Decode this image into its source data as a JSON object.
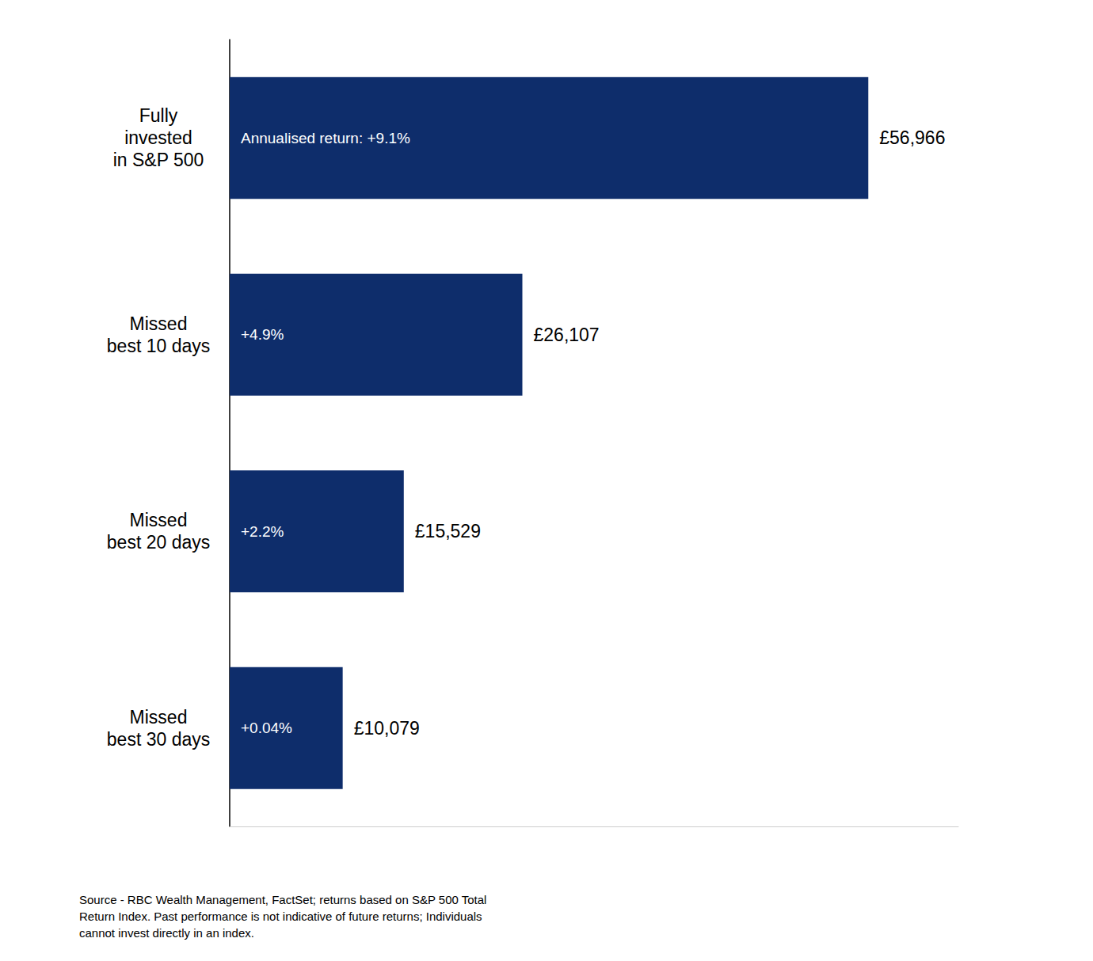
{
  "chart_data": {
    "type": "bar",
    "orientation": "horizontal",
    "categories": [
      "Fully\ninvested\nin S&P 500",
      "Missed\nbest 10 days",
      "Missed\nbest 20 days",
      "Missed\nbest 30 days"
    ],
    "values": [
      56966,
      26107,
      15529,
      10079
    ],
    "value_labels": [
      "£56,966",
      "£26,107",
      "£15,529",
      "£10,079"
    ],
    "annotations": [
      "Annualised return: +9.1%",
      "+4.9%",
      "+2.2%",
      "+0.04%"
    ],
    "footnote": "Source - RBC Wealth Management, FactSet; returns based on S&P 500 Total\nReturn Index. Past performance is not indicative of future returns; Individuals\ncannot invest directly in an index.",
    "color": "#0e2d6b",
    "xlim": [
      0,
      65000
    ],
    "data_labels": true,
    "tick_labels": "y",
    "grid": false
  }
}
